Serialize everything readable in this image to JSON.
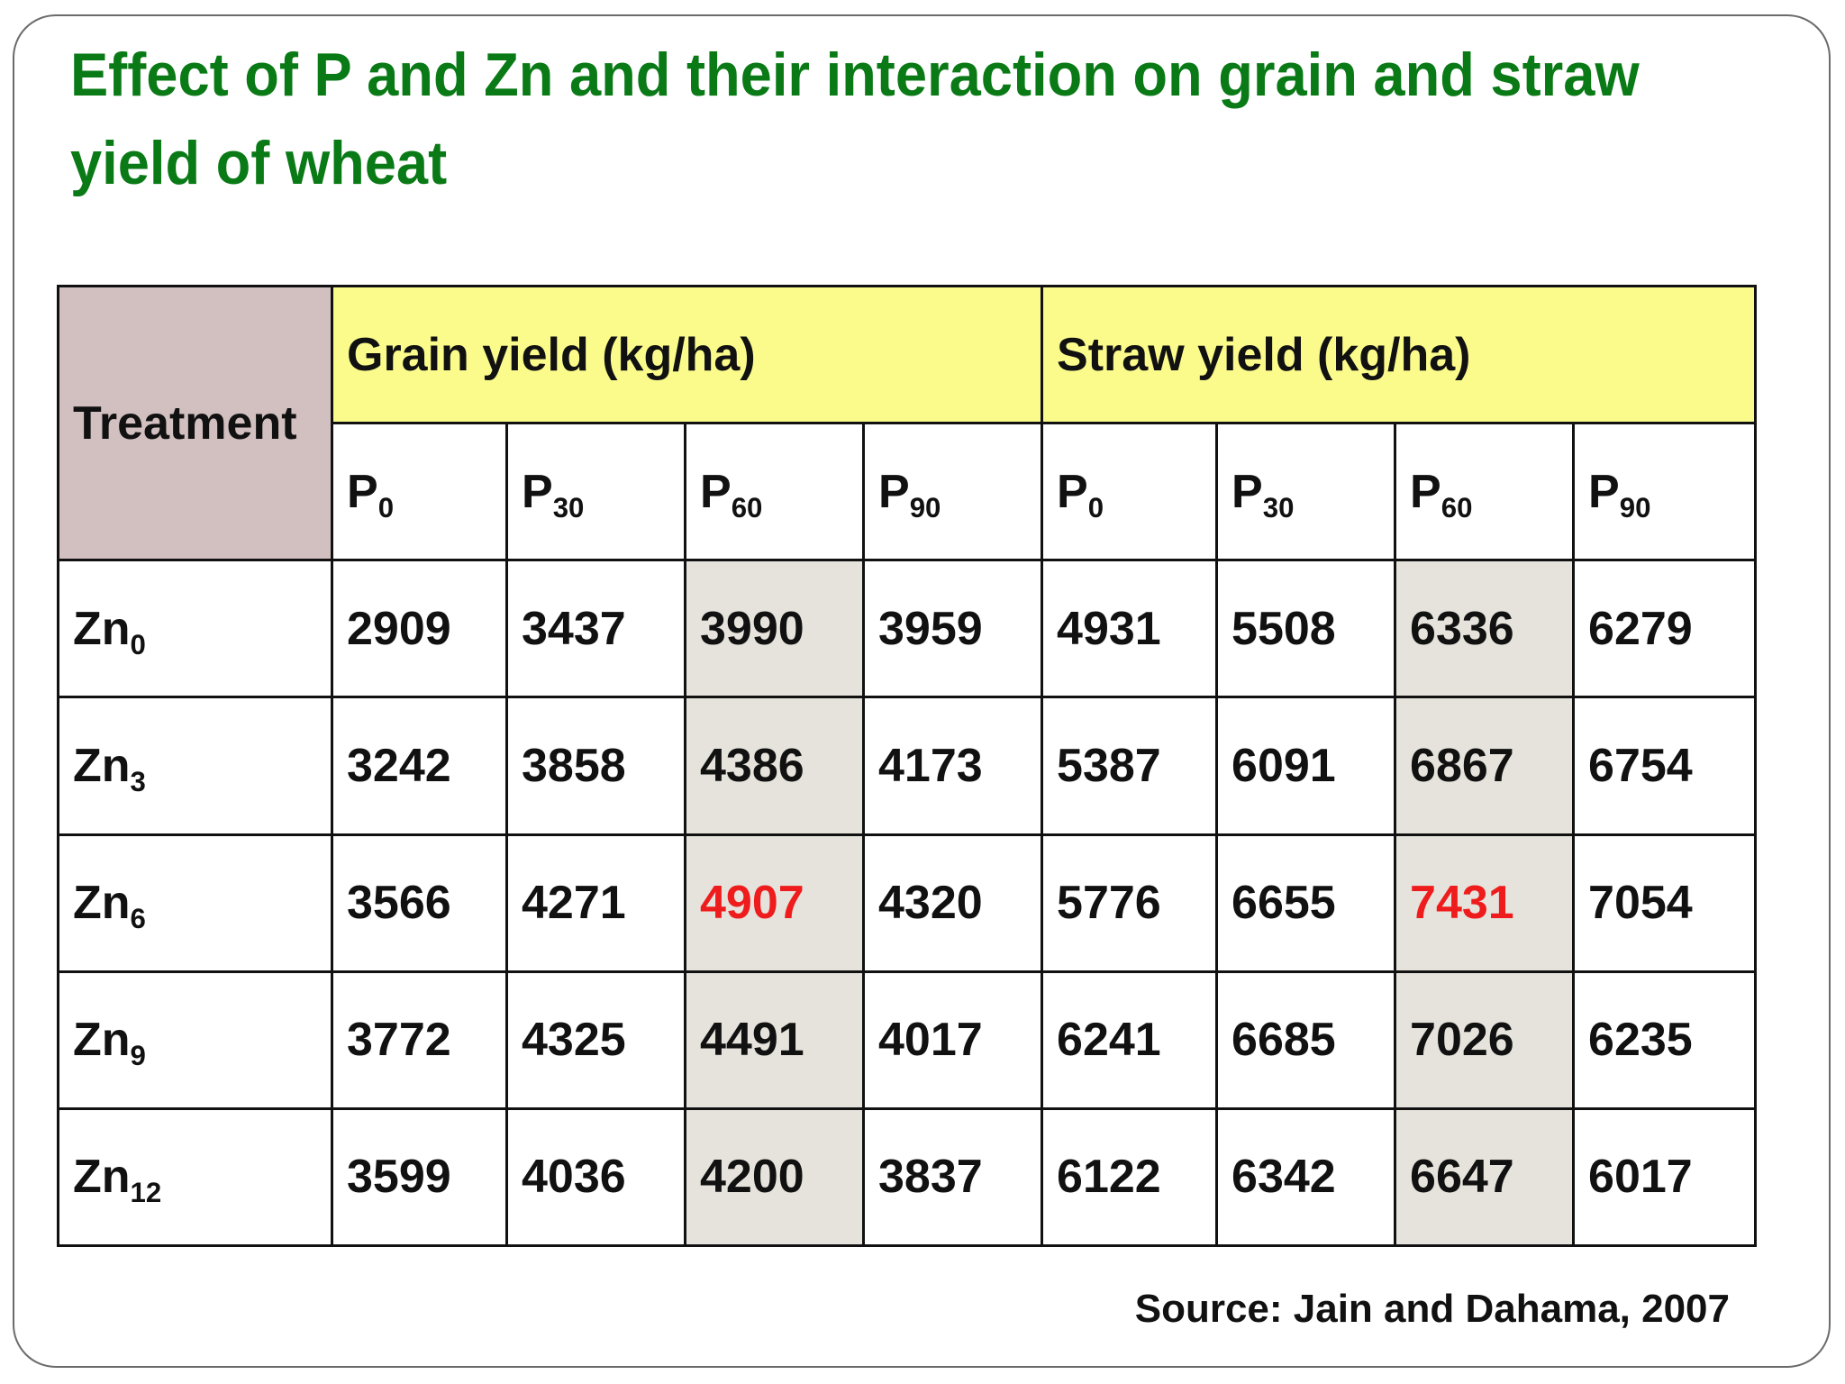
{
  "title": "Effect of P and Zn and their interaction on grain and straw yield of wheat",
  "table": {
    "treatment_header": "Treatment",
    "groups": [
      {
        "label": "Grain yield (kg/ha)"
      },
      {
        "label": "Straw yield (kg/ha)"
      }
    ],
    "p_levels": [
      {
        "base": "P",
        "sub": "0"
      },
      {
        "base": "P",
        "sub": "30"
      },
      {
        "base": "P",
        "sub": "60"
      },
      {
        "base": "P",
        "sub": "90"
      },
      {
        "base": "P",
        "sub": "0"
      },
      {
        "base": "P",
        "sub": "30"
      },
      {
        "base": "P",
        "sub": "60"
      },
      {
        "base": "P",
        "sub": "90"
      }
    ],
    "rows": [
      {
        "label": {
          "base": "Zn",
          "sub": "0"
        },
        "values": [
          "2909",
          "3437",
          "3990",
          "3959",
          "4931",
          "5508",
          "6336",
          "6279"
        ]
      },
      {
        "label": {
          "base": "Zn",
          "sub": "3"
        },
        "values": [
          "3242",
          "3858",
          "4386",
          "4173",
          "5387",
          "6091",
          "6867",
          "6754"
        ]
      },
      {
        "label": {
          "base": "Zn",
          "sub": "6"
        },
        "values": [
          "3566",
          "4271",
          "4907",
          "4320",
          "5776",
          "6655",
          "7431",
          "7054"
        ]
      },
      {
        "label": {
          "base": "Zn",
          "sub": "9"
        },
        "values": [
          "3772",
          "4325",
          "4491",
          "4017",
          "6241",
          "6685",
          "7026",
          "6235"
        ]
      },
      {
        "label": {
          "base": "Zn",
          "sub": "12"
        },
        "values": [
          "3599",
          "4036",
          "4200",
          "3837",
          "6122",
          "6342",
          "6647",
          "6017"
        ]
      }
    ]
  },
  "source": "Source: Jain and Dahama, 2007",
  "colors": {
    "title": "#0a7a16",
    "treatment_bg": "#d2bfc0",
    "group_header_bg": "#fbfb8c",
    "level_text": "#6a0a6a",
    "p60_column_bg": "#e6e3dc",
    "max_value_text": "#ee1c1c"
  }
}
